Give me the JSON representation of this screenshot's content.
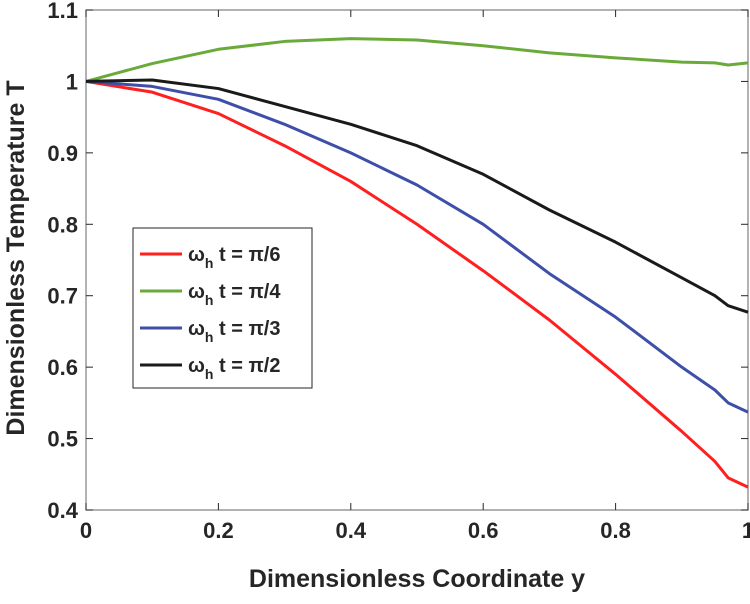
{
  "chart_data": {
    "type": "line",
    "xlabel": "Dimensionless Coordinate y",
    "ylabel": "Dimensionless Temperature T",
    "xlim": [
      0,
      1
    ],
    "ylim": [
      0.4,
      1.1
    ],
    "xticks": [
      "0",
      "0.2",
      "0.4",
      "0.6",
      "0.8",
      "1"
    ],
    "yticks": [
      "0.4",
      "0.5",
      "0.6",
      "0.7",
      "0.8",
      "0.9",
      "1",
      "1.1"
    ],
    "grid": false,
    "legend_position": "center-left",
    "x": [
      0,
      0.1,
      0.2,
      0.3,
      0.4,
      0.5,
      0.6,
      0.7,
      0.8,
      0.9,
      0.95,
      0.97,
      1.0
    ],
    "series": [
      {
        "name": "ω_h t = π/6",
        "main": "ω",
        "sub": "h",
        "rest": " t = π/6",
        "color": "#ff1f1f",
        "values": [
          1,
          0.985,
          0.955,
          0.91,
          0.86,
          0.8,
          0.735,
          0.666,
          0.59,
          0.51,
          0.468,
          0.445,
          0.432
        ]
      },
      {
        "name": "ω_h t = π/4",
        "main": "ω",
        "sub": "h",
        "rest": " t = π/4",
        "color": "#6aaa3a",
        "values": [
          1,
          1.025,
          1.045,
          1.056,
          1.06,
          1.058,
          1.05,
          1.04,
          1.033,
          1.027,
          1.026,
          1.023,
          1.026
        ]
      },
      {
        "name": "ω_h t = π/3",
        "main": "ω",
        "sub": "h",
        "rest": " t = π/3",
        "color": "#3d4fa8",
        "values": [
          1,
          0.993,
          0.975,
          0.94,
          0.9,
          0.855,
          0.8,
          0.731,
          0.67,
          0.6,
          0.568,
          0.55,
          0.537
        ]
      },
      {
        "name": "ω_h t = π/2",
        "main": "ω",
        "sub": "h",
        "rest": " t = π/2",
        "color": "#1a1a1a",
        "values": [
          1,
          1.002,
          0.99,
          0.965,
          0.94,
          0.91,
          0.87,
          0.82,
          0.775,
          0.725,
          0.7,
          0.686,
          0.677
        ]
      }
    ]
  }
}
